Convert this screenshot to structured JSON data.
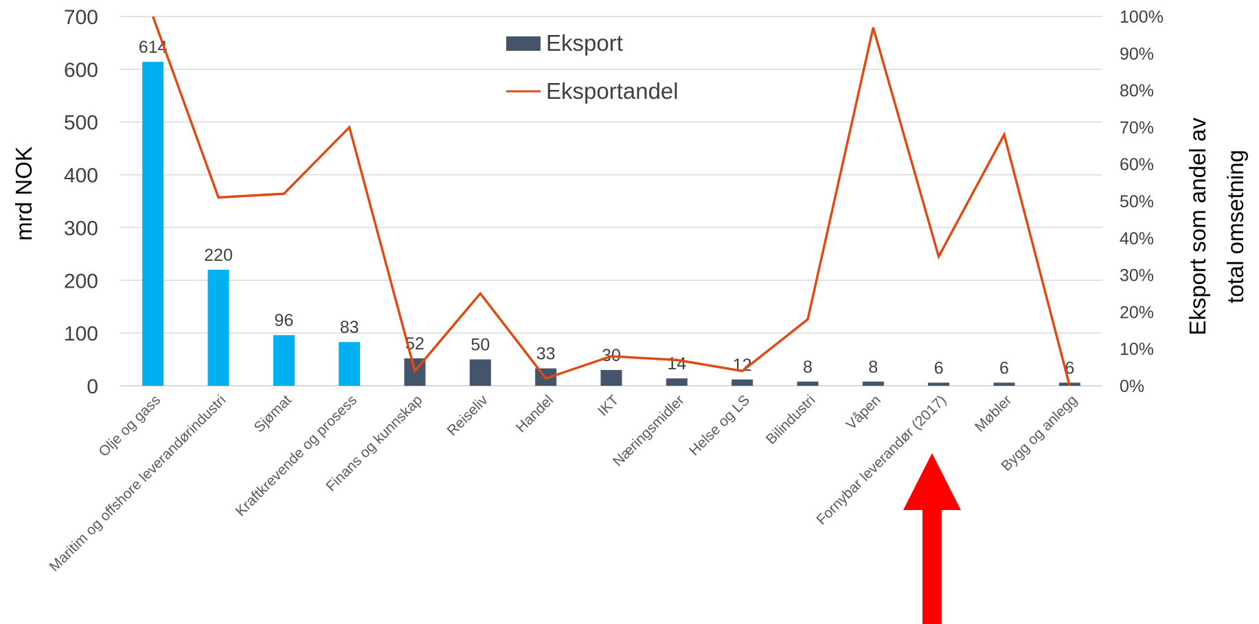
{
  "chart_data": {
    "type": "bar",
    "categories": [
      "Olje og gass",
      "Maritim og offshore leverandørindustri",
      "Sjømat",
      "Kraftkrevende og prosess",
      "Finans og kunnskap",
      "Reiseliv",
      "Handel",
      "IKT",
      "Næringsmidler",
      "Helse og LS",
      "Bilindustri",
      "Våpen",
      "Fornybar leverandør (2017)",
      "Møbler",
      "Bygg og anlegg"
    ],
    "series": [
      {
        "name": "Eksport",
        "type": "bar",
        "axis": "left",
        "values": [
          614,
          220,
          96,
          83,
          52,
          50,
          33,
          30,
          14,
          12,
          8,
          8,
          6,
          6,
          6
        ],
        "data_labels": [
          "614",
          "220",
          "96",
          "83",
          "52",
          "50",
          "33",
          "30",
          "14",
          "12",
          "8",
          "8",
          "6",
          "6",
          "6"
        ],
        "highlight_count": 4,
        "highlight_color": "#00b0f0",
        "color": "#44546a"
      },
      {
        "name": "Eksportandel",
        "type": "line",
        "axis": "right",
        "values": [
          1.0,
          0.51,
          0.52,
          0.7,
          0.04,
          0.25,
          0.02,
          0.08,
          0.07,
          0.04,
          0.18,
          0.97,
          0.35,
          0.68,
          0.0
        ],
        "color": "#e04a10"
      }
    ],
    "ylabel": "mrd NOK",
    "ylim": [
      0,
      700
    ],
    "yticks": [
      "0",
      "100",
      "200",
      "300",
      "400",
      "500",
      "600",
      "700"
    ],
    "y2label_lines": [
      "Eksport som andel av",
      "total omsetning"
    ],
    "y2lim": [
      0,
      1.0
    ],
    "y2ticks": [
      "0%",
      "10%",
      "20%",
      "30%",
      "40%",
      "50%",
      "60%",
      "70%",
      "80%",
      "90%",
      "100%"
    ],
    "grid": true,
    "legend_position": "top-center",
    "annotation": {
      "type": "arrow",
      "color": "#ff0000",
      "points_to_category": "Fornybar leverandør (2017)"
    }
  }
}
